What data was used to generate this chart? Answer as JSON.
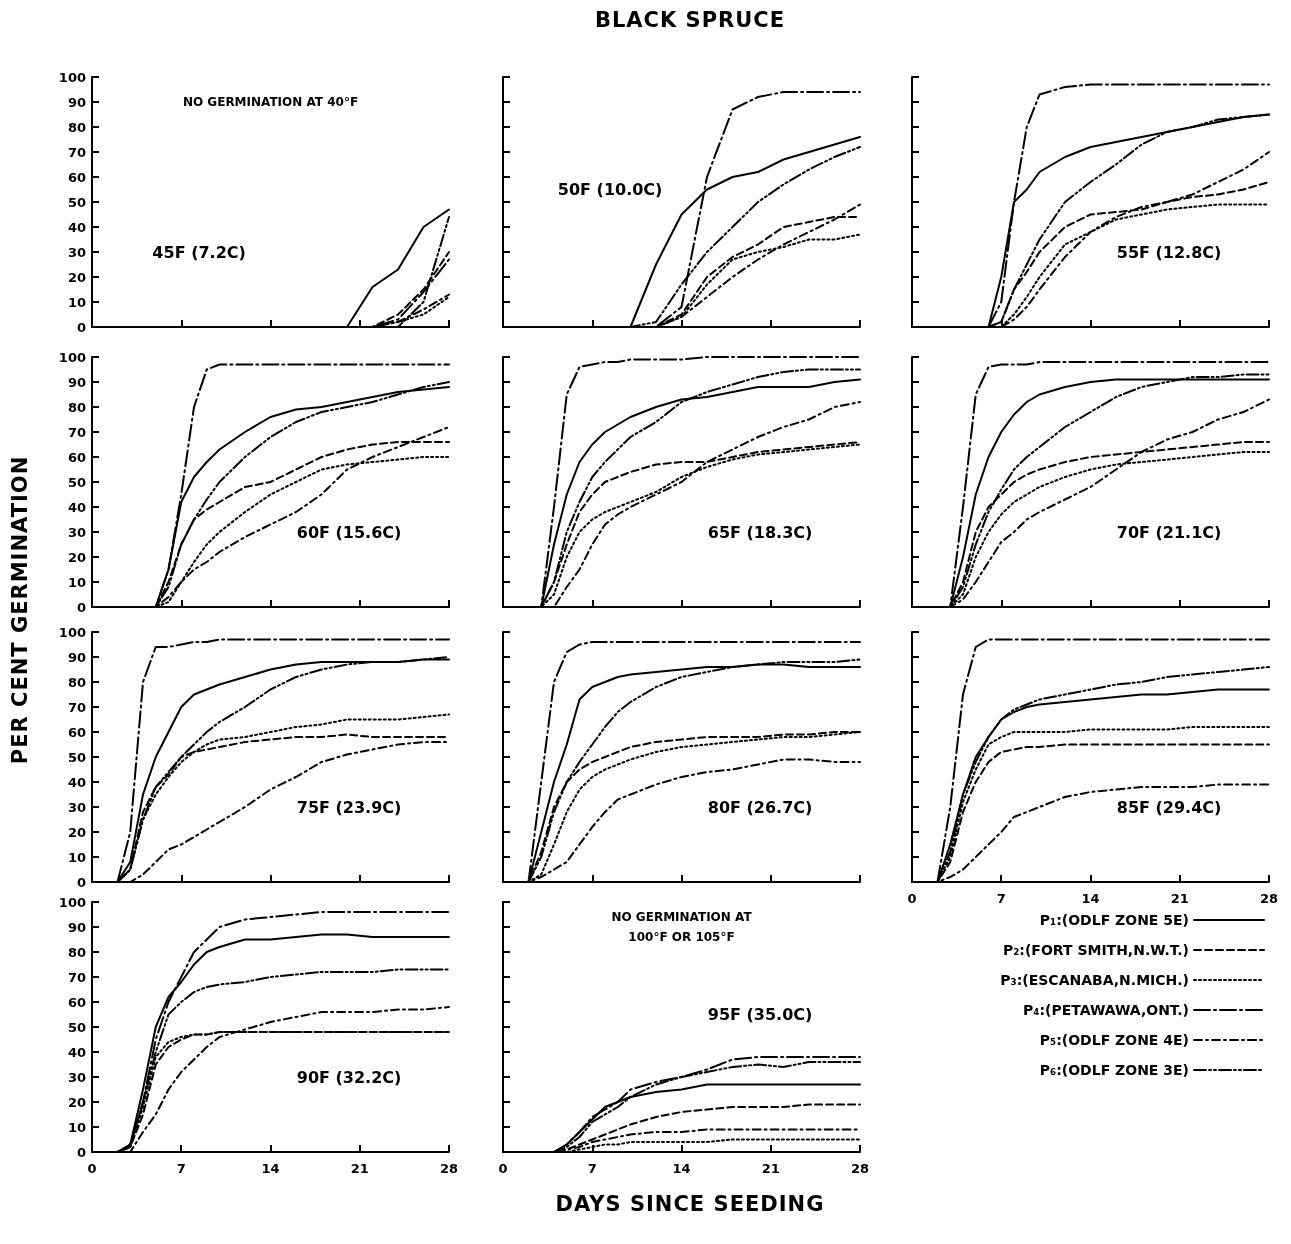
{
  "chart_data": [
    {
      "type": "line",
      "annotations": [
        "NO GERMINATION AT 40°F",
        "45F (7.2C)"
      ],
      "x": [
        0,
        2,
        3,
        4,
        5,
        6,
        7,
        8,
        9,
        10,
        12,
        14,
        16,
        18,
        20,
        22,
        24,
        26,
        28
      ],
      "xlim": [
        0,
        28
      ],
      "xticks": [
        0,
        7,
        14,
        21,
        28
      ],
      "ylim": [
        0,
        100
      ],
      "yticks": [
        0,
        10,
        20,
        30,
        40,
        50,
        60,
        70,
        80,
        90,
        100
      ],
      "tick_labels": "y",
      "series": [
        {
          "color": "#000000",
          "line_style": "solid",
          "values": [
            0,
            0,
            0,
            0,
            0,
            0,
            0,
            0,
            0,
            0,
            0,
            0,
            0,
            0,
            0,
            16,
            23,
            40,
            47
          ]
        },
        {
          "color": "#000000",
          "line_style": "dashed",
          "values": [
            0,
            0,
            0,
            0,
            0,
            0,
            0,
            0,
            0,
            0,
            0,
            0,
            0,
            0,
            0,
            0,
            5,
            15,
            30
          ]
        },
        {
          "color": "#000000",
          "line_style": "dotted",
          "values": [
            0,
            0,
            0,
            0,
            0,
            0,
            0,
            0,
            0,
            0,
            0,
            0,
            0,
            0,
            0,
            0,
            2,
            5,
            12
          ]
        },
        {
          "color": "#000000",
          "line_style": "longdash_dot",
          "values": [
            0,
            0,
            0,
            0,
            0,
            0,
            0,
            0,
            0,
            0,
            0,
            0,
            0,
            0,
            0,
            0,
            3,
            14,
            27
          ]
        },
        {
          "color": "#000000",
          "line_style": "dash_dot",
          "values": [
            0,
            0,
            0,
            0,
            0,
            0,
            0,
            0,
            0,
            0,
            0,
            0,
            0,
            0,
            0,
            0,
            2,
            7,
            13
          ]
        },
        {
          "color": "#000000",
          "line_style": "dash_dot_dot",
          "values": [
            0,
            0,
            0,
            0,
            0,
            0,
            0,
            0,
            0,
            0,
            0,
            0,
            0,
            0,
            0,
            0,
            0,
            10,
            44
          ]
        }
      ]
    },
    {
      "type": "line",
      "title": "BLACK SPRUCE",
      "annotations": [
        "50F (10.0C)"
      ],
      "x": [
        0,
        2,
        3,
        4,
        5,
        6,
        7,
        8,
        9,
        10,
        12,
        14,
        16,
        18,
        20,
        22,
        24,
        26,
        28
      ],
      "xlim": [
        0,
        28
      ],
      "xticks": [
        0,
        7,
        14,
        21,
        28
      ],
      "ylim": [
        0,
        100
      ],
      "yticks": [
        0,
        10,
        20,
        30,
        40,
        50,
        60,
        70,
        80,
        90,
        100
      ],
      "tick_labels": false,
      "series": [
        {
          "color": "#000000",
          "line_style": "solid",
          "values": [
            0,
            0,
            0,
            0,
            0,
            0,
            0,
            0,
            0,
            0,
            25,
            45,
            55,
            60,
            62,
            67,
            70,
            73,
            76
          ]
        },
        {
          "color": "#000000",
          "line_style": "dashed",
          "values": [
            0,
            0,
            0,
            0,
            0,
            0,
            0,
            0,
            0,
            0,
            0,
            5,
            20,
            28,
            33,
            40,
            42,
            44,
            44
          ]
        },
        {
          "color": "#000000",
          "line_style": "dotted",
          "values": [
            0,
            0,
            0,
            0,
            0,
            0,
            0,
            0,
            0,
            0,
            0,
            4,
            17,
            27,
            30,
            32,
            35,
            35,
            37
          ]
        },
        {
          "color": "#000000",
          "line_style": "longdash_dot",
          "values": [
            0,
            0,
            0,
            0,
            0,
            0,
            0,
            0,
            0,
            0,
            0,
            8,
            60,
            87,
            92,
            94,
            94,
            94,
            94
          ]
        },
        {
          "color": "#000000",
          "line_style": "dash_dot",
          "values": [
            0,
            0,
            0,
            0,
            0,
            0,
            0,
            0,
            0,
            0,
            0,
            4,
            12,
            20,
            27,
            33,
            38,
            43,
            49
          ]
        },
        {
          "color": "#000000",
          "line_style": "dash_dot_dot",
          "values": [
            0,
            0,
            0,
            0,
            0,
            0,
            0,
            0,
            0,
            0,
            2,
            17,
            30,
            40,
            50,
            57,
            63,
            68,
            72
          ]
        }
      ]
    },
    {
      "type": "line",
      "annotations": [
        "55F (12.8C)"
      ],
      "x": [
        0,
        2,
        3,
        4,
        5,
        6,
        7,
        8,
        9,
        10,
        12,
        14,
        16,
        18,
        20,
        22,
        24,
        26,
        28
      ],
      "xlim": [
        0,
        28
      ],
      "xticks": [
        0,
        7,
        14,
        21,
        28
      ],
      "ylim": [
        0,
        100
      ],
      "yticks": [
        0,
        10,
        20,
        30,
        40,
        50,
        60,
        70,
        80,
        90,
        100
      ],
      "tick_labels": false,
      "series": [
        {
          "color": "#000000",
          "line_style": "solid",
          "values": [
            0,
            0,
            0,
            0,
            0,
            0,
            20,
            50,
            55,
            62,
            68,
            72,
            74,
            76,
            78,
            80,
            82,
            84,
            85
          ]
        },
        {
          "color": "#000000",
          "line_style": "dashed",
          "values": [
            0,
            0,
            0,
            0,
            0,
            0,
            2,
            15,
            22,
            30,
            40,
            45,
            46,
            47,
            50,
            52,
            53,
            55,
            58
          ]
        },
        {
          "color": "#000000",
          "line_style": "dotted",
          "values": [
            0,
            0,
            0,
            0,
            0,
            0,
            0,
            5,
            12,
            20,
            33,
            38,
            43,
            45,
            47,
            48,
            49,
            49,
            49
          ]
        },
        {
          "color": "#000000",
          "line_style": "longdash_dot",
          "values": [
            0,
            0,
            0,
            0,
            0,
            0,
            10,
            50,
            80,
            93,
            96,
            97,
            97,
            97,
            97,
            97,
            97,
            97,
            97
          ]
        },
        {
          "color": "#000000",
          "line_style": "dash_dot",
          "values": [
            0,
            0,
            0,
            0,
            0,
            0,
            0,
            3,
            8,
            15,
            28,
            38,
            44,
            48,
            50,
            53,
            58,
            63,
            70
          ]
        },
        {
          "color": "#000000",
          "line_style": "dash_dot_dot",
          "values": [
            0,
            0,
            0,
            0,
            0,
            0,
            2,
            15,
            25,
            35,
            50,
            58,
            65,
            73,
            78,
            80,
            83,
            84,
            85
          ]
        }
      ]
    },
    {
      "type": "line",
      "ylabel": "PER CENT GERMINATION",
      "annotations": [
        "60F (15.6C)"
      ],
      "x": [
        0,
        2,
        3,
        4,
        5,
        6,
        7,
        8,
        9,
        10,
        12,
        14,
        16,
        18,
        20,
        22,
        24,
        26,
        28
      ],
      "xlim": [
        0,
        28
      ],
      "xticks": [
        0,
        7,
        14,
        21,
        28
      ],
      "ylim": [
        0,
        100
      ],
      "yticks": [
        0,
        10,
        20,
        30,
        40,
        50,
        60,
        70,
        80,
        90,
        100
      ],
      "tick_labels": "y",
      "series": [
        {
          "color": "#000000",
          "line_style": "solid",
          "values": [
            0,
            0,
            0,
            0,
            0,
            15,
            42,
            52,
            58,
            63,
            70,
            76,
            79,
            80,
            82,
            84,
            86,
            87,
            88
          ]
        },
        {
          "color": "#000000",
          "line_style": "dashed",
          "values": [
            0,
            0,
            0,
            0,
            0,
            10,
            25,
            35,
            39,
            42,
            48,
            50,
            55,
            60,
            63,
            65,
            66,
            66,
            66
          ]
        },
        {
          "color": "#000000",
          "line_style": "dotted",
          "values": [
            0,
            0,
            0,
            0,
            0,
            2,
            10,
            18,
            25,
            30,
            38,
            45,
            50,
            55,
            57,
            58,
            59,
            60,
            60
          ]
        },
        {
          "color": "#000000",
          "line_style": "longdash_dot",
          "values": [
            0,
            0,
            0,
            0,
            0,
            15,
            45,
            80,
            95,
            97,
            97,
            97,
            97,
            97,
            97,
            97,
            97,
            97,
            97
          ]
        },
        {
          "color": "#000000",
          "line_style": "dash_dot",
          "values": [
            0,
            0,
            0,
            0,
            0,
            4,
            10,
            15,
            18,
            22,
            28,
            33,
            38,
            45,
            55,
            60,
            64,
            68,
            72
          ]
        },
        {
          "color": "#000000",
          "line_style": "dash_dot_dot",
          "values": [
            0,
            0,
            0,
            0,
            0,
            8,
            25,
            35,
            43,
            50,
            60,
            68,
            74,
            78,
            80,
            82,
            85,
            88,
            90
          ]
        }
      ]
    },
    {
      "type": "line",
      "annotations": [
        "65F (18.3C)"
      ],
      "x": [
        0,
        2,
        3,
        4,
        5,
        6,
        7,
        8,
        9,
        10,
        12,
        14,
        16,
        18,
        20,
        22,
        24,
        26,
        28
      ],
      "xlim": [
        0,
        28
      ],
      "xticks": [
        0,
        7,
        14,
        21,
        28
      ],
      "ylim": [
        0,
        100
      ],
      "yticks": [
        0,
        10,
        20,
        30,
        40,
        50,
        60,
        70,
        80,
        90,
        100
      ],
      "tick_labels": false,
      "series": [
        {
          "color": "#000000",
          "line_style": "solid",
          "values": [
            0,
            0,
            0,
            25,
            45,
            58,
            65,
            70,
            73,
            76,
            80,
            83,
            84,
            86,
            88,
            88,
            88,
            90,
            91
          ]
        },
        {
          "color": "#000000",
          "line_style": "dashed",
          "values": [
            0,
            0,
            0,
            10,
            25,
            38,
            45,
            50,
            52,
            54,
            57,
            58,
            58,
            60,
            62,
            63,
            64,
            65,
            66
          ]
        },
        {
          "color": "#000000",
          "line_style": "dotted",
          "values": [
            0,
            0,
            0,
            5,
            20,
            30,
            35,
            38,
            40,
            42,
            46,
            52,
            56,
            59,
            61,
            62,
            63,
            64,
            65
          ]
        },
        {
          "color": "#000000",
          "line_style": "longdash_dot",
          "values": [
            0,
            0,
            0,
            40,
            85,
            96,
            97,
            98,
            98,
            99,
            99,
            99,
            100,
            100,
            100,
            100,
            100,
            100,
            100
          ]
        },
        {
          "color": "#000000",
          "line_style": "dash_dot",
          "values": [
            0,
            0,
            0,
            0,
            8,
            15,
            25,
            33,
            37,
            40,
            45,
            50,
            58,
            63,
            68,
            72,
            75,
            80,
            82
          ]
        },
        {
          "color": "#000000",
          "line_style": "dash_dot_dot",
          "values": [
            0,
            0,
            0,
            10,
            30,
            42,
            52,
            58,
            63,
            68,
            74,
            82,
            86,
            89,
            92,
            94,
            95,
            95,
            95
          ]
        }
      ]
    },
    {
      "type": "line",
      "annotations": [
        "70F (21.1C)"
      ],
      "x": [
        0,
        2,
        3,
        4,
        5,
        6,
        7,
        8,
        9,
        10,
        12,
        14,
        16,
        18,
        20,
        22,
        24,
        26,
        28
      ],
      "xlim": [
        0,
        28
      ],
      "xticks": [
        0,
        7,
        14,
        21,
        28
      ],
      "ylim": [
        0,
        100
      ],
      "yticks": [
        0,
        10,
        20,
        30,
        40,
        50,
        60,
        70,
        80,
        90,
        100
      ],
      "tick_labels": false,
      "series": [
        {
          "color": "#000000",
          "line_style": "solid",
          "values": [
            0,
            0,
            0,
            20,
            45,
            60,
            70,
            77,
            82,
            85,
            88,
            90,
            91,
            91,
            91,
            91,
            91,
            91,
            91
          ]
        },
        {
          "color": "#000000",
          "line_style": "dashed",
          "values": [
            0,
            0,
            0,
            10,
            30,
            40,
            45,
            50,
            53,
            55,
            58,
            60,
            61,
            62,
            63,
            64,
            65,
            66,
            66
          ]
        },
        {
          "color": "#000000",
          "line_style": "dotted",
          "values": [
            0,
            0,
            0,
            5,
            20,
            30,
            37,
            42,
            45,
            48,
            52,
            55,
            57,
            58,
            59,
            60,
            61,
            62,
            62
          ]
        },
        {
          "color": "#000000",
          "line_style": "longdash_dot",
          "values": [
            0,
            0,
            0,
            40,
            85,
            96,
            97,
            97,
            97,
            98,
            98,
            98,
            98,
            98,
            98,
            98,
            98,
            98,
            98
          ]
        },
        {
          "color": "#000000",
          "line_style": "dash_dot",
          "values": [
            0,
            0,
            0,
            3,
            10,
            18,
            26,
            30,
            35,
            38,
            43,
            48,
            55,
            62,
            67,
            70,
            75,
            78,
            83
          ]
        },
        {
          "color": "#000000",
          "line_style": "dash_dot_dot",
          "values": [
            0,
            0,
            0,
            8,
            25,
            38,
            47,
            55,
            60,
            64,
            72,
            78,
            84,
            88,
            90,
            92,
            92,
            93,
            93
          ]
        }
      ]
    },
    {
      "type": "line",
      "annotations": [
        "75F (23.9C)"
      ],
      "x": [
        0,
        2,
        3,
        4,
        5,
        6,
        7,
        8,
        9,
        10,
        12,
        14,
        16,
        18,
        20,
        22,
        24,
        26,
        28
      ],
      "xlim": [
        0,
        28
      ],
      "xticks": [
        0,
        7,
        14,
        21,
        28
      ],
      "ylim": [
        0,
        100
      ],
      "yticks": [
        0,
        10,
        20,
        30,
        40,
        50,
        60,
        70,
        80,
        90,
        100
      ],
      "tick_labels": "y",
      "series": [
        {
          "color": "#000000",
          "line_style": "solid",
          "values": [
            0,
            0,
            8,
            35,
            50,
            60,
            70,
            75,
            77,
            79,
            82,
            85,
            87,
            88,
            88,
            88,
            88,
            89,
            89
          ]
        },
        {
          "color": "#000000",
          "line_style": "dashed",
          "values": [
            0,
            0,
            5,
            28,
            38,
            43,
            50,
            52,
            53,
            54,
            56,
            57,
            58,
            58,
            59,
            58,
            58,
            58,
            58
          ]
        },
        {
          "color": "#000000",
          "line_style": "dotted",
          "values": [
            0,
            0,
            5,
            25,
            35,
            42,
            48,
            52,
            55,
            57,
            58,
            60,
            62,
            63,
            65,
            65,
            65,
            66,
            67
          ]
        },
        {
          "color": "#000000",
          "line_style": "longdash_dot",
          "values": [
            0,
            0,
            20,
            80,
            94,
            94,
            95,
            96,
            96,
            97,
            97,
            97,
            97,
            97,
            97,
            97,
            97,
            97,
            97
          ]
        },
        {
          "color": "#000000",
          "line_style": "dash_dot",
          "values": [
            0,
            0,
            0,
            3,
            8,
            13,
            15,
            18,
            21,
            24,
            30,
            37,
            42,
            48,
            51,
            53,
            55,
            56,
            56
          ]
        },
        {
          "color": "#000000",
          "line_style": "dash_dot_dot",
          "values": [
            0,
            0,
            5,
            25,
            38,
            44,
            50,
            55,
            60,
            64,
            70,
            77,
            82,
            85,
            87,
            88,
            88,
            89,
            90
          ]
        }
      ]
    },
    {
      "type": "line",
      "annotations": [
        "80F (26.7C)"
      ],
      "x": [
        0,
        2,
        3,
        4,
        5,
        6,
        7,
        8,
        9,
        10,
        12,
        14,
        16,
        18,
        20,
        22,
        24,
        26,
        28
      ],
      "xlim": [
        0,
        28
      ],
      "xticks": [
        0,
        7,
        14,
        21,
        28
      ],
      "ylim": [
        0,
        100
      ],
      "yticks": [
        0,
        10,
        20,
        30,
        40,
        50,
        60,
        70,
        80,
        90,
        100
      ],
      "tick_labels": false,
      "series": [
        {
          "color": "#000000",
          "line_style": "solid",
          "values": [
            0,
            0,
            20,
            40,
            55,
            73,
            78,
            80,
            82,
            83,
            84,
            85,
            86,
            86,
            87,
            87,
            86,
            86,
            86
          ]
        },
        {
          "color": "#000000",
          "line_style": "dashed",
          "values": [
            0,
            0,
            12,
            30,
            40,
            45,
            48,
            50,
            52,
            54,
            56,
            57,
            58,
            58,
            58,
            59,
            59,
            60,
            60
          ]
        },
        {
          "color": "#000000",
          "line_style": "dotted",
          "values": [
            0,
            0,
            3,
            15,
            28,
            37,
            42,
            45,
            47,
            49,
            52,
            54,
            55,
            56,
            57,
            58,
            58,
            59,
            60
          ]
        },
        {
          "color": "#000000",
          "line_style": "longdash_dot",
          "values": [
            0,
            0,
            40,
            80,
            92,
            95,
            96,
            96,
            96,
            96,
            96,
            96,
            96,
            96,
            96,
            96,
            96,
            96,
            96
          ]
        },
        {
          "color": "#000000",
          "line_style": "dash_dot",
          "values": [
            0,
            0,
            2,
            5,
            8,
            15,
            22,
            28,
            33,
            35,
            39,
            42,
            44,
            45,
            47,
            49,
            49,
            48,
            48
          ]
        },
        {
          "color": "#000000",
          "line_style": "dash_dot_dot",
          "values": [
            0,
            0,
            10,
            28,
            40,
            48,
            55,
            62,
            68,
            72,
            78,
            82,
            84,
            86,
            87,
            88,
            88,
            88,
            89
          ]
        }
      ]
    },
    {
      "type": "line",
      "annotations": [
        "85F (29.4C)"
      ],
      "x": [
        0,
        2,
        3,
        4,
        5,
        6,
        7,
        8,
        9,
        10,
        12,
        14,
        16,
        18,
        20,
        22,
        24,
        26,
        28
      ],
      "xlim": [
        0,
        28
      ],
      "xticks": [
        0,
        7,
        14,
        21,
        28
      ],
      "ylim": [
        0,
        100
      ],
      "yticks": [
        0,
        10,
        20,
        30,
        40,
        50,
        60,
        70,
        80,
        90,
        100
      ],
      "tick_labels": "x",
      "series": [
        {
          "color": "#000000",
          "line_style": "solid",
          "values": [
            0,
            0,
            15,
            35,
            50,
            58,
            65,
            68,
            70,
            71,
            72,
            73,
            74,
            75,
            75,
            76,
            77,
            77,
            77
          ]
        },
        {
          "color": "#000000",
          "line_style": "dashed",
          "values": [
            0,
            0,
            8,
            28,
            40,
            48,
            52,
            53,
            54,
            54,
            55,
            55,
            55,
            55,
            55,
            55,
            55,
            55,
            55
          ]
        },
        {
          "color": "#000000",
          "line_style": "dotted",
          "values": [
            0,
            0,
            10,
            32,
            45,
            55,
            58,
            60,
            60,
            60,
            60,
            61,
            61,
            61,
            61,
            62,
            62,
            62,
            62
          ]
        },
        {
          "color": "#000000",
          "line_style": "longdash_dot",
          "values": [
            0,
            0,
            30,
            75,
            94,
            97,
            97,
            97,
            97,
            97,
            97,
            97,
            97,
            97,
            97,
            97,
            97,
            97,
            97
          ]
        },
        {
          "color": "#000000",
          "line_style": "dash_dot",
          "values": [
            0,
            0,
            2,
            5,
            10,
            15,
            20,
            26,
            28,
            30,
            34,
            36,
            37,
            38,
            38,
            38,
            39,
            39,
            39
          ]
        },
        {
          "color": "#000000",
          "line_style": "dash_dot_dot",
          "values": [
            0,
            0,
            12,
            35,
            48,
            58,
            65,
            69,
            71,
            73,
            75,
            77,
            79,
            80,
            82,
            83,
            84,
            85,
            86
          ]
        }
      ]
    },
    {
      "type": "line",
      "annotations": [
        "90F (32.2C)"
      ],
      "x": [
        0,
        2,
        3,
        4,
        5,
        6,
        7,
        8,
        9,
        10,
        12,
        14,
        16,
        18,
        20,
        22,
        24,
        26,
        28
      ],
      "xlim": [
        0,
        28
      ],
      "xticks": [
        0,
        7,
        14,
        21,
        28
      ],
      "ylim": [
        0,
        100
      ],
      "yticks": [
        0,
        10,
        20,
        30,
        40,
        50,
        60,
        70,
        80,
        90,
        100
      ],
      "series": [
        {
          "color": "#000000",
          "line_style": "solid",
          "values": [
            0,
            0,
            3,
            25,
            50,
            62,
            68,
            75,
            80,
            82,
            85,
            85,
            86,
            87,
            87,
            86,
            86,
            86,
            86
          ]
        },
        {
          "color": "#000000",
          "line_style": "dashed",
          "values": [
            0,
            0,
            2,
            15,
            35,
            42,
            45,
            47,
            47,
            48,
            48,
            48,
            48,
            48,
            48,
            48,
            48,
            48,
            48
          ]
        },
        {
          "color": "#000000",
          "line_style": "dotted",
          "values": [
            0,
            0,
            2,
            18,
            38,
            44,
            46,
            47,
            47,
            48,
            48,
            48,
            48,
            48,
            48,
            48,
            48,
            48,
            48
          ]
        },
        {
          "color": "#000000",
          "line_style": "longdash_dot",
          "values": [
            0,
            0,
            3,
            20,
            45,
            60,
            70,
            80,
            85,
            90,
            93,
            94,
            95,
            96,
            96,
            96,
            96,
            96,
            96
          ]
        },
        {
          "color": "#000000",
          "line_style": "dash_dot",
          "values": [
            0,
            0,
            0,
            8,
            15,
            25,
            32,
            37,
            42,
            46,
            49,
            52,
            54,
            56,
            56,
            56,
            57,
            57,
            58
          ]
        },
        {
          "color": "#000000",
          "line_style": "dash_dot_dot",
          "values": [
            0,
            0,
            2,
            20,
            40,
            55,
            60,
            64,
            66,
            67,
            68,
            70,
            71,
            72,
            72,
            72,
            73,
            73,
            73
          ]
        }
      ]
    },
    {
      "type": "line",
      "xlabel": "DAYS SINCE SEEDING",
      "annotations": [
        "NO GERMINATION AT\n100°F OR 105°F",
        "95F (35.0C)"
      ],
      "legend": "right",
      "x": [
        0,
        2,
        3,
        4,
        5,
        6,
        7,
        8,
        9,
        10,
        12,
        14,
        16,
        18,
        20,
        22,
        24,
        26,
        28
      ],
      "xlim": [
        0,
        28
      ],
      "xticks": [
        0,
        7,
        14,
        21,
        28
      ],
      "ylim": [
        0,
        100
      ],
      "yticks": [
        0,
        10,
        20,
        30,
        40,
        50,
        60,
        70,
        80,
        90,
        100
      ],
      "tick_labels": "x",
      "series": [
        {
          "name": "P₁:(ODLF ZONE 5E)",
          "color": "#000000",
          "line_style": "solid",
          "values": [
            0,
            0,
            0,
            0,
            3,
            8,
            13,
            18,
            20,
            22,
            24,
            25,
            27,
            27,
            27,
            27,
            27,
            27,
            27
          ]
        },
        {
          "name": "P₂:(FORT SMITH,N.W.T.)",
          "color": "#000000",
          "line_style": "dashed",
          "values": [
            0,
            0,
            0,
            0,
            1,
            3,
            5,
            7,
            9,
            11,
            14,
            16,
            17,
            18,
            18,
            18,
            19,
            19,
            19
          ]
        },
        {
          "name": "P₃:(ESCANABA,N.MICH.)",
          "color": "#000000",
          "line_style": "dotted",
          "values": [
            0,
            0,
            0,
            0,
            0,
            1,
            2,
            3,
            3,
            4,
            4,
            4,
            4,
            5,
            5,
            5,
            5,
            5,
            5
          ]
        },
        {
          "name": "P₄:(PETAWAWA,ONT.)",
          "color": "#000000",
          "line_style": "longdash_dot",
          "values": [
            0,
            0,
            0,
            0,
            3,
            8,
            14,
            17,
            20,
            25,
            28,
            30,
            33,
            37,
            38,
            38,
            38,
            38,
            38
          ]
        },
        {
          "name": "P₅:(ODLF ZONE 4E)",
          "color": "#000000",
          "line_style": "dash_dot",
          "values": [
            0,
            0,
            0,
            0,
            1,
            2,
            4,
            5,
            6,
            7,
            8,
            8,
            9,
            9,
            9,
            9,
            9,
            9,
            9
          ]
        },
        {
          "name": "P₆:(ODLF ZONE 3E)",
          "color": "#000000",
          "line_style": "dash_dot_dot",
          "values": [
            0,
            0,
            0,
            0,
            2,
            6,
            12,
            15,
            18,
            22,
            27,
            30,
            32,
            34,
            35,
            34,
            36,
            36,
            36
          ]
        }
      ]
    }
  ]
}
